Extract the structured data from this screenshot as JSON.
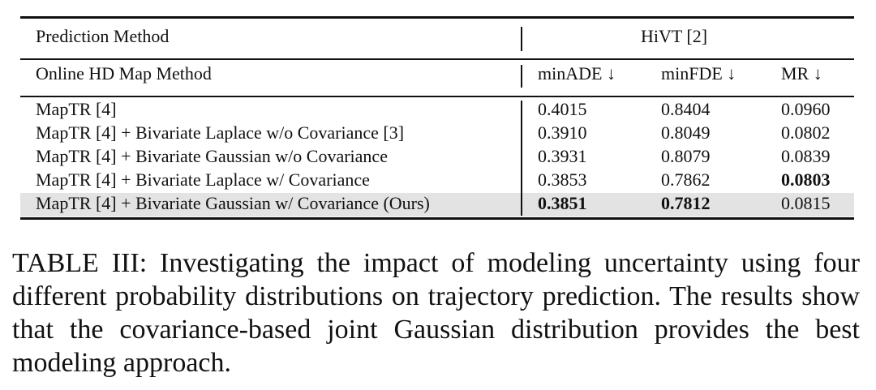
{
  "table": {
    "header_row1": {
      "left": "Prediction Method",
      "right": "HiVT [2]"
    },
    "header_row2": {
      "left": "Online HD Map Method",
      "cols": [
        "minADE ↓",
        "minFDE ↓",
        "MR ↓"
      ]
    },
    "rows": [
      {
        "method": "MapTR [4]",
        "minADE": "0.4015",
        "minFDE": "0.8404",
        "MR": "0.0960"
      },
      {
        "method": "MapTR [4] + Bivariate Laplace w/o Covariance [3]",
        "minADE": "0.3910",
        "minFDE": "0.8049",
        "MR": "0.0802"
      },
      {
        "method": "MapTR [4] + Bivariate Gaussian w/o Covariance",
        "minADE": "0.3931",
        "minFDE": "0.8079",
        "MR": "0.0839"
      },
      {
        "method": "MapTR [4] + Bivariate Laplace w/ Covariance",
        "minADE": "0.3853",
        "minFDE": "0.7862",
        "MR": "0.0803"
      },
      {
        "method": "MapTR [4] + Bivariate Gaussian w/ Covariance (Ours)",
        "minADE": "0.3851",
        "minFDE": "0.7812",
        "MR": "0.0815"
      }
    ],
    "highlight_color": "#e3e3e3"
  },
  "caption": "TABLE III: Investigating the impact of modeling uncertainty using four different probability distributions on trajectory prediction. The results show that the covariance-based joint Gaussian distribution provides the best modeling approach."
}
